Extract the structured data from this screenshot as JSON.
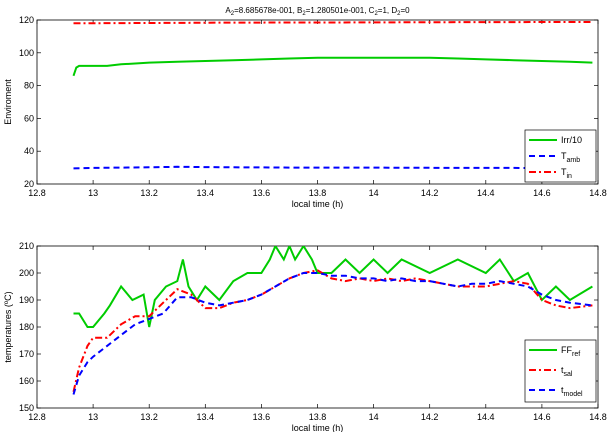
{
  "chart_data": [
    {
      "type": "line",
      "title": {
        "main": "A",
        "parts": [
          {
            "t": "A"
          },
          {
            "t": "2",
            "sub": true
          },
          {
            "t": "=8.685678e-001, B"
          },
          {
            "t": "2",
            "sub": true
          },
          {
            "t": "=1.280501e-001, C"
          },
          {
            "t": "2",
            "sub": true
          },
          {
            "t": "=1, D"
          },
          {
            "t": "2",
            "sub": true
          },
          {
            "t": "=0"
          }
        ]
      },
      "xlabel": "local time (h)",
      "ylabel": "Enviroment",
      "xlim": [
        12.8,
        14.8
      ],
      "ylim": [
        20,
        120
      ],
      "xticks": [
        "12.8",
        "13",
        "13.2",
        "13.4",
        "13.6",
        "13.8",
        "14",
        "14.2",
        "14.4",
        "14.6",
        "14.8"
      ],
      "yticks": [
        "20",
        "40",
        "60",
        "80",
        "100",
        "120"
      ],
      "legend_position": "right",
      "series": [
        {
          "name": "Irr/10",
          "label_main": "Irr/10",
          "label_sub": "",
          "color": "#00cc00",
          "dash": "solid",
          "x": [
            12.93,
            12.94,
            12.95,
            13.0,
            13.05,
            13.1,
            13.15,
            13.2,
            13.3,
            13.4,
            13.5,
            13.6,
            13.7,
            13.8,
            13.9,
            14.0,
            14.1,
            14.2,
            14.3,
            14.4,
            14.5,
            14.6,
            14.7,
            14.78
          ],
          "y": [
            86,
            91,
            92,
            92,
            92,
            93,
            93.5,
            94,
            94.5,
            95,
            95.5,
            96,
            96.5,
            97,
            97,
            97,
            97,
            97,
            96.5,
            96,
            95.5,
            95,
            94.5,
            94
          ]
        },
        {
          "name": "T amb",
          "label_main": "T",
          "label_sub": "amb",
          "color": "#0000ff",
          "dash": "dashed",
          "x": [
            12.93,
            13.0,
            13.1,
            13.2,
            13.3,
            13.4,
            13.5,
            13.6,
            13.7,
            13.8,
            13.9,
            14.0,
            14.1,
            14.2,
            14.3,
            14.4,
            14.5,
            14.6,
            14.7,
            14.78
          ],
          "y": [
            29.5,
            29.8,
            30,
            30.2,
            30.5,
            30.3,
            30.2,
            30.1,
            30,
            30,
            30,
            30,
            29.9,
            29.9,
            29.8,
            29.8,
            29.8,
            29.7,
            29.7,
            29.7
          ]
        },
        {
          "name": "T in",
          "label_main": "T",
          "label_sub": "in",
          "color": "#ff0000",
          "dash": "dashdot",
          "x": [
            12.93,
            13.2,
            13.5,
            13.8,
            14.1,
            14.4,
            14.78
          ],
          "y": [
            118,
            118.2,
            118.4,
            118.5,
            118.6,
            118.7,
            118.8
          ]
        }
      ]
    },
    {
      "type": "line",
      "title": "",
      "xlabel": "local time (h)",
      "ylabel": "temperatures (ºC)",
      "xlim": [
        12.8,
        14.8
      ],
      "ylim": [
        150,
        210
      ],
      "xticks": [
        "12.8",
        "13",
        "13.2",
        "13.4",
        "13.6",
        "13.8",
        "14",
        "14.2",
        "14.4",
        "14.6",
        "14.8"
      ],
      "yticks": [
        "150",
        "160",
        "170",
        "180",
        "190",
        "200",
        "210"
      ],
      "legend_position": "bottom-right",
      "series": [
        {
          "name": "FF ref",
          "label_main": "FF",
          "label_sub": "ref",
          "color": "#00cc00",
          "dash": "solid",
          "x": [
            12.93,
            12.95,
            12.98,
            13.0,
            13.04,
            13.06,
            13.1,
            13.14,
            13.18,
            13.2,
            13.22,
            13.26,
            13.3,
            13.32,
            13.34,
            13.37,
            13.4,
            13.45,
            13.5,
            13.55,
            13.6,
            13.63,
            13.65,
            13.68,
            13.7,
            13.72,
            13.75,
            13.78,
            13.8,
            13.85,
            13.9,
            13.95,
            14.0,
            14.05,
            14.1,
            14.2,
            14.3,
            14.4,
            14.45,
            14.5,
            14.55,
            14.6,
            14.65,
            14.7,
            14.78
          ],
          "y": [
            185,
            185,
            180,
            180,
            185,
            188,
            195,
            190,
            192,
            180,
            190,
            195,
            197,
            205,
            195,
            190,
            195,
            190,
            197,
            200,
            200,
            205,
            210,
            205,
            210,
            205,
            210,
            205,
            200,
            200,
            205,
            200,
            205,
            200,
            205,
            200,
            205,
            200,
            205,
            197,
            200,
            190,
            195,
            190,
            195
          ]
        },
        {
          "name": "t sal",
          "label_main": "t",
          "label_sub": "sal",
          "color": "#ff0000",
          "dash": "dashdot",
          "x": [
            12.93,
            12.95,
            12.98,
            13.0,
            13.05,
            13.1,
            13.15,
            13.2,
            13.25,
            13.3,
            13.35,
            13.4,
            13.45,
            13.5,
            13.55,
            13.6,
            13.65,
            13.7,
            13.75,
            13.8,
            13.85,
            13.9,
            13.95,
            14.0,
            14.05,
            14.1,
            14.15,
            14.2,
            14.25,
            14.3,
            14.35,
            14.4,
            14.45,
            14.5,
            14.55,
            14.6,
            14.65,
            14.7,
            14.78
          ],
          "y": [
            156,
            165,
            173,
            176,
            176,
            181,
            184,
            184,
            189,
            194,
            192,
            187,
            187,
            189,
            190,
            192,
            195,
            198,
            200,
            201,
            198,
            197,
            198,
            197,
            198,
            197,
            198,
            197,
            196,
            195,
            195,
            195,
            196,
            197,
            196,
            190,
            188,
            187,
            188
          ]
        },
        {
          "name": "t model",
          "label_main": "t",
          "label_sub": "model",
          "color": "#0000ff",
          "dash": "dashed",
          "x": [
            12.93,
            12.95,
            12.98,
            13.0,
            13.05,
            13.1,
            13.15,
            13.2,
            13.25,
            13.3,
            13.35,
            13.4,
            13.45,
            13.5,
            13.55,
            13.6,
            13.65,
            13.7,
            13.75,
            13.8,
            13.85,
            13.9,
            13.95,
            14.0,
            14.05,
            14.1,
            14.15,
            14.2,
            14.25,
            14.3,
            14.35,
            14.4,
            14.45,
            14.5,
            14.55,
            14.6,
            14.65,
            14.7,
            14.78
          ],
          "y": [
            155,
            162,
            167,
            169,
            173,
            177,
            181,
            183,
            185,
            191,
            191,
            189,
            188,
            189,
            190,
            192,
            195,
            198,
            200,
            200,
            199,
            199,
            198,
            198,
            197,
            198,
            197,
            197,
            196,
            195,
            196,
            196,
            197,
            196,
            195,
            192,
            190,
            189,
            188
          ]
        }
      ]
    }
  ]
}
